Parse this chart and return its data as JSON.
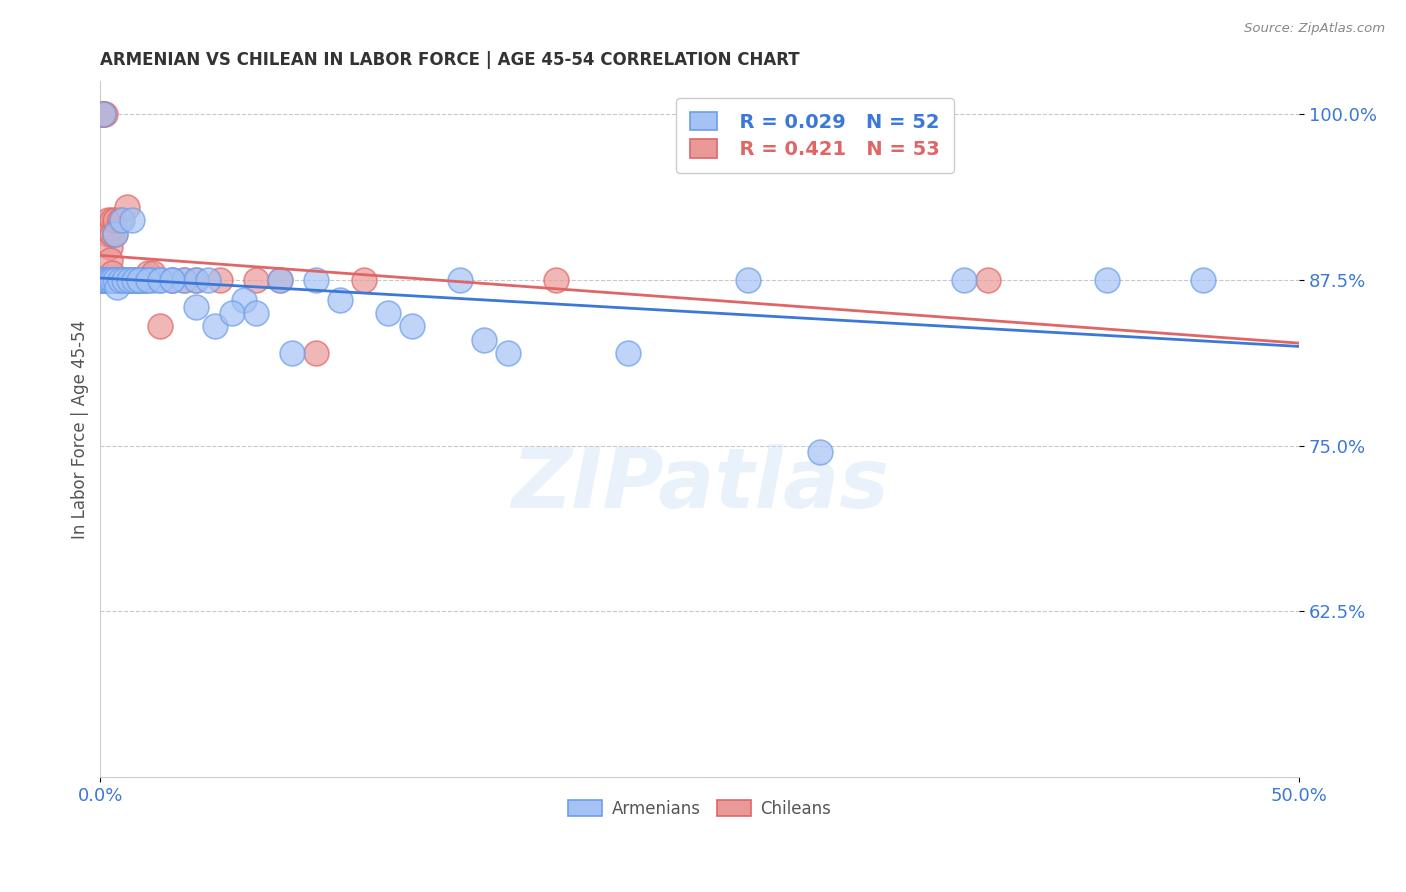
{
  "title": "ARMENIAN VS CHILEAN IN LABOR FORCE | AGE 45-54 CORRELATION CHART",
  "source": "Source: ZipAtlas.com",
  "ylabel": "In Labor Force | Age 45-54",
  "watermark": "ZIPatlas",
  "xmin": 0.0,
  "xmax": 0.5,
  "ymin": 0.5,
  "ymax": 1.025,
  "yticks": [
    0.625,
    0.75,
    0.875,
    1.0
  ],
  "ytick_labels": [
    "62.5%",
    "75.0%",
    "87.5%",
    "100.0%"
  ],
  "xticks": [
    0.0,
    0.5
  ],
  "xtick_labels": [
    "0.0%",
    "50.0%"
  ],
  "legend_armenian_R": "R = 0.029",
  "legend_armenian_N": "N = 52",
  "legend_chilean_R": "R = 0.421",
  "legend_chilean_N": "N = 53",
  "armenian_fill": "#a4c2f4",
  "armenian_edge": "#6d9eeb",
  "chilean_fill": "#ea9999",
  "chilean_edge": "#e06666",
  "armenian_line_color": "#3c78d8",
  "chilean_line_color": "#e06666",
  "armenian_x": [
    0.001,
    0.001,
    0.001,
    0.001,
    0.001,
    0.002,
    0.002,
    0.002,
    0.002,
    0.003,
    0.003,
    0.003,
    0.004,
    0.004,
    0.004,
    0.005,
    0.005,
    0.005,
    0.005,
    0.006,
    0.006,
    0.006,
    0.006,
    0.007,
    0.007,
    0.007,
    0.008,
    0.009,
    0.009,
    0.01,
    0.01,
    0.011,
    0.012,
    0.013,
    0.015,
    0.016,
    0.018,
    0.02,
    0.022,
    0.025,
    0.03,
    0.035,
    0.04,
    0.048,
    0.06,
    0.075,
    0.09,
    0.12,
    0.16,
    0.22,
    0.36,
    0.46
  ],
  "armenian_y": [
    0.875,
    0.875,
    0.875,
    0.875,
    1.0,
    0.875,
    0.875,
    0.875,
    0.875,
    0.875,
    0.875,
    0.875,
    0.875,
    0.875,
    0.875,
    0.875,
    0.875,
    0.875,
    0.875,
    0.875,
    0.91,
    0.875,
    0.875,
    0.875,
    0.875,
    0.875,
    0.875,
    0.92,
    0.875,
    0.875,
    0.875,
    0.875,
    0.875,
    0.92,
    0.875,
    0.875,
    0.875,
    0.875,
    0.875,
    0.875,
    0.875,
    0.875,
    0.875,
    0.84,
    0.86,
    0.875,
    0.875,
    0.85,
    0.83,
    0.82,
    0.875,
    0.875
  ],
  "armenian_x2": [
    0.002,
    0.003,
    0.004,
    0.005,
    0.006,
    0.007,
    0.008,
    0.01,
    0.012,
    0.014,
    0.016,
    0.02,
    0.025,
    0.03,
    0.04,
    0.045,
    0.055,
    0.065,
    0.08,
    0.1,
    0.13,
    0.15,
    0.17,
    0.27,
    0.3,
    0.42
  ],
  "armenian_y2": [
    0.875,
    0.875,
    0.875,
    0.875,
    0.875,
    0.87,
    0.875,
    0.875,
    0.875,
    0.875,
    0.875,
    0.875,
    0.875,
    0.875,
    0.855,
    0.875,
    0.85,
    0.85,
    0.82,
    0.86,
    0.84,
    0.875,
    0.82,
    0.875,
    0.745,
    0.875
  ],
  "chilean_x": [
    0.001,
    0.001,
    0.001,
    0.001,
    0.002,
    0.002,
    0.002,
    0.002,
    0.003,
    0.003,
    0.003,
    0.003,
    0.004,
    0.004,
    0.004,
    0.004,
    0.005,
    0.005,
    0.005,
    0.005,
    0.005,
    0.006,
    0.006,
    0.006,
    0.006,
    0.007,
    0.007,
    0.007,
    0.008,
    0.008,
    0.009,
    0.009,
    0.009,
    0.01,
    0.011,
    0.012,
    0.013,
    0.015,
    0.016,
    0.018,
    0.02,
    0.022,
    0.025,
    0.03,
    0.035,
    0.04,
    0.05,
    0.065,
    0.075,
    0.09,
    0.11,
    0.19,
    0.37
  ],
  "chilean_y": [
    1.0,
    1.0,
    1.0,
    0.875,
    1.0,
    0.875,
    0.875,
    0.875,
    0.92,
    0.91,
    0.875,
    0.875,
    0.9,
    0.89,
    0.875,
    0.875,
    0.92,
    0.91,
    0.88,
    0.875,
    0.875,
    0.91,
    0.92,
    0.875,
    0.875,
    0.875,
    0.875,
    0.875,
    0.92,
    0.875,
    0.875,
    0.875,
    0.875,
    0.875,
    0.93,
    0.875,
    0.875,
    0.875,
    0.875,
    0.875,
    0.88,
    0.88,
    0.84,
    0.875,
    0.875,
    0.875,
    0.875,
    0.875,
    0.875,
    0.82,
    0.875,
    0.875,
    0.875
  ]
}
